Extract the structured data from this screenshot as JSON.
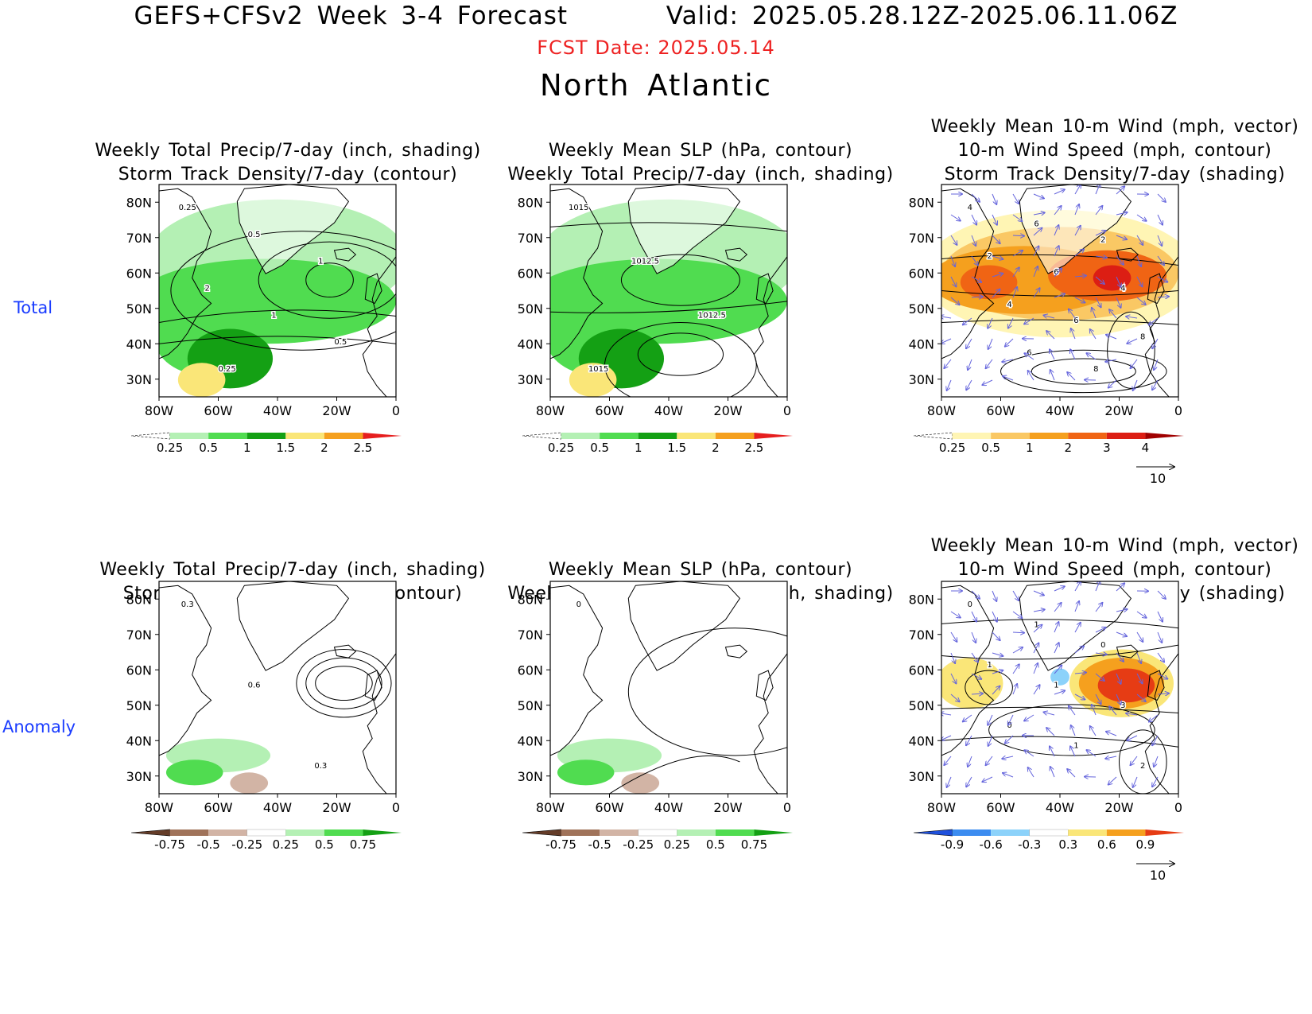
{
  "header": {
    "title": "GEFS+CFSv2 Week 3-4 Forecast",
    "valid": "Valid: 2025.05.28.12Z-2025.06.11.06Z",
    "fcst_date": "FCST Date: 2025.05.14",
    "region": "North Atlantic"
  },
  "rows": [
    "Total",
    "Anomaly"
  ],
  "axes": {
    "lat_ticks": [
      "80N",
      "70N",
      "60N",
      "50N",
      "40N",
      "30N"
    ],
    "lon_ticks": [
      "80W",
      "60W",
      "40W",
      "20W",
      "0"
    ],
    "lat_range": [
      25,
      85
    ],
    "lon_range": [
      -80,
      0
    ]
  },
  "panels": [
    {
      "id": "precip-total",
      "title": [
        "Weekly Total Precip/7-day (inch, shading)",
        "Storm Track Density/7-day (contour)"
      ],
      "colorbar": {
        "labels": [
          "0.25",
          "0.5",
          "1",
          "1.5",
          "2",
          "2.5"
        ],
        "colors": [
          "#ffffff",
          "#b4f0b4",
          "#50dc50",
          "#14a014",
          "#fae678",
          "#f5a01e",
          "#e61e1e"
        ]
      },
      "contour_labels": [
        "0.25",
        "0.5",
        "1",
        "2",
        "1",
        "0.5",
        "0.25"
      ]
    },
    {
      "id": "slp-total",
      "title": [
        "Weekly Mean SLP (hPa, contour)",
        "Weekly Total Precip/7-day (inch, shading)"
      ],
      "colorbar": {
        "labels": [
          "0.25",
          "0.5",
          "1",
          "1.5",
          "2",
          "2.5"
        ],
        "colors": [
          "#ffffff",
          "#b4f0b4",
          "#50dc50",
          "#14a014",
          "#fae678",
          "#f5a01e",
          "#e61e1e"
        ]
      },
      "contour_labels": [
        "1015",
        "1012.5",
        "1012.5",
        "1015"
      ]
    },
    {
      "id": "wind-total",
      "title": [
        "Weekly Mean 10-m Wind (mph, vector)",
        "10-m Wind Speed (mph, contour)",
        "Storm Track Density/7-day (shading)"
      ],
      "colorbar": {
        "labels": [
          "0.25",
          "0.5",
          "1",
          "2",
          "3",
          "4"
        ],
        "colors": [
          "#ffffff",
          "#fff5b4",
          "#fac864",
          "#f5a01e",
          "#f06414",
          "#dc1e14",
          "#a00000"
        ]
      },
      "vector_ref": "10",
      "contour_labels": [
        "4",
        "6",
        "2",
        "2",
        "6",
        "4",
        "4",
        "6",
        "8",
        "6",
        "8"
      ]
    },
    {
      "id": "precip-anom",
      "title": [
        "Weekly Total Precip/7-day (inch, shading)",
        "Storm Track Density/7-day (contour)"
      ],
      "colorbar": {
        "labels": [
          "-0.75",
          "-0.5",
          "-0.25",
          "0.25",
          "0.5",
          "0.75"
        ],
        "colors": [
          "#643c28",
          "#a0735a",
          "#d2b4a5",
          "#ffffff",
          "#b4f0b4",
          "#50dc50",
          "#14a014"
        ]
      },
      "contour_labels": [
        "0.3",
        "0.6",
        "0.3"
      ]
    },
    {
      "id": "slp-anom",
      "title": [
        "Weekly Mean SLP (hPa, contour)",
        "Weekly Total Precip/7-day (inch, shading)"
      ],
      "colorbar": {
        "labels": [
          "-0.75",
          "-0.5",
          "-0.25",
          "0.25",
          "0.5",
          "0.75"
        ],
        "colors": [
          "#643c28",
          "#a0735a",
          "#d2b4a5",
          "#ffffff",
          "#b4f0b4",
          "#50dc50",
          "#14a014"
        ]
      },
      "contour_labels": [
        "0"
      ]
    },
    {
      "id": "wind-anom",
      "title": [
        "Weekly Mean 10-m Wind (mph, vector)",
        "10-m Wind Speed (mph, contour)",
        "Storm Track Density/7-day (shading)"
      ],
      "colorbar": {
        "labels": [
          "-0.9",
          "-0.6",
          "-0.3",
          "0.3",
          "0.6",
          "0.9"
        ],
        "colors": [
          "#1e50dc",
          "#3c8cf0",
          "#8cd2fa",
          "#ffffff",
          "#fae678",
          "#f5a01e",
          "#e63c14"
        ]
      },
      "vector_ref": "10",
      "contour_labels": [
        "0",
        "1",
        "0",
        "1",
        "1",
        "3",
        "0",
        "1",
        "2"
      ]
    }
  ]
}
